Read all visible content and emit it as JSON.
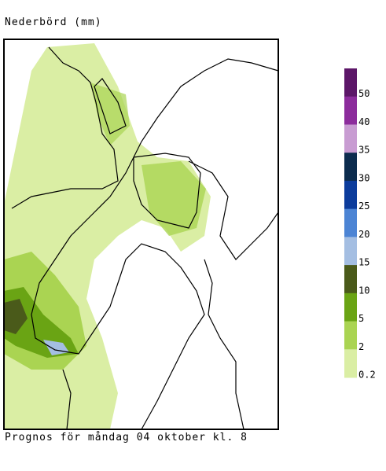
{
  "title": "Nederbörd (mm)",
  "caption": "Prognos för måndag 04 oktober kl. 8",
  "legend": [
    {
      "label": "50",
      "color": "#5c1668"
    },
    {
      "label": "40",
      "color": "#8c2c9c"
    },
    {
      "label": "35",
      "color": "#c89cd2"
    },
    {
      "label": "30",
      "color": "#0c2c4e"
    },
    {
      "label": "25",
      "color": "#0c3c9c"
    },
    {
      "label": "20",
      "color": "#4c84d4"
    },
    {
      "label": "15",
      "color": "#a4bee2"
    },
    {
      "label": "10",
      "color": "#4a5a1a"
    },
    {
      "label": "5",
      "color": "#6aa414"
    },
    {
      "label": "2",
      "color": "#aad452"
    },
    {
      "label": "0.2",
      "color": "#daeea4"
    }
  ]
}
